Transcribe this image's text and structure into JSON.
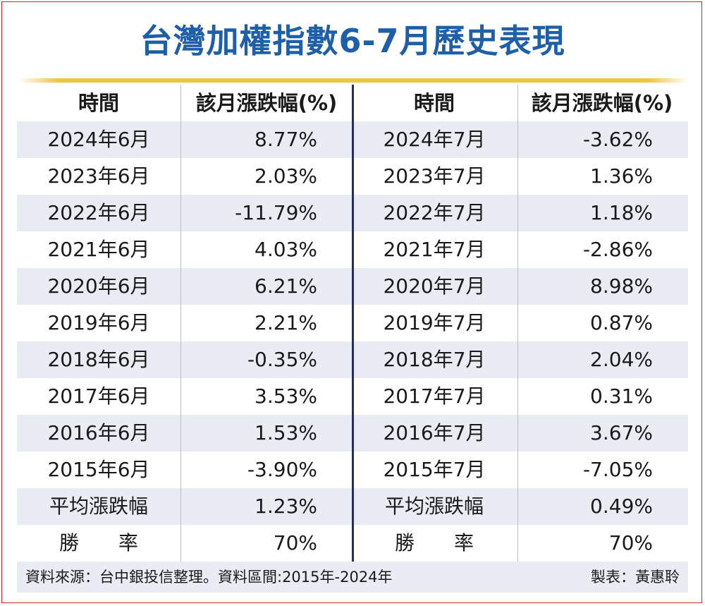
{
  "title": "台灣加權指數6-7月歷史表現",
  "source_note": "資料來源：台中銀投信整理。資料區間:2015年-2024年",
  "author_note": "製表：黃惠聆",
  "colors": {
    "title": "#1f5fa8",
    "border": "#d4232b",
    "divider": "#242a7a",
    "rule": "#f2c33b",
    "stripe": "#e9ecf2"
  },
  "chart_data": {
    "type": "table",
    "title": "台灣加權指數6-7月歷史表現",
    "columns": [
      "時間",
      "該月漲跌幅(%)",
      "時間",
      "該月漲跌幅(%)"
    ],
    "june": [
      {
        "period": "2024年6月",
        "change": "8.77%"
      },
      {
        "period": "2023年6月",
        "change": "2.03%"
      },
      {
        "period": "2022年6月",
        "change": "-11.79%"
      },
      {
        "period": "2021年6月",
        "change": "4.03%"
      },
      {
        "period": "2020年6月",
        "change": "6.21%"
      },
      {
        "period": "2019年6月",
        "change": "2.21%"
      },
      {
        "period": "2018年6月",
        "change": "-0.35%"
      },
      {
        "period": "2017年6月",
        "change": "3.53%"
      },
      {
        "period": "2016年6月",
        "change": "1.53%"
      },
      {
        "period": "2015年6月",
        "change": "-3.90%"
      },
      {
        "period": "平均漲跌幅",
        "change": "1.23%"
      },
      {
        "period": "勝　　率",
        "change": "70%"
      }
    ],
    "july": [
      {
        "period": "2024年7月",
        "change": "-3.62%"
      },
      {
        "period": "2023年7月",
        "change": "1.36%"
      },
      {
        "period": "2022年7月",
        "change": "1.18%"
      },
      {
        "period": "2021年7月",
        "change": "-2.86%"
      },
      {
        "period": "2020年7月",
        "change": "8.98%"
      },
      {
        "period": "2019年7月",
        "change": "0.87%"
      },
      {
        "period": "2018年7月",
        "change": "2.04%"
      },
      {
        "period": "2017年7月",
        "change": "0.31%"
      },
      {
        "period": "2016年7月",
        "change": "3.67%"
      },
      {
        "period": "2015年7月",
        "change": "-7.05%"
      },
      {
        "period": "平均漲跌幅",
        "change": "0.49%"
      },
      {
        "period": "勝　　率",
        "change": "70%"
      }
    ]
  }
}
